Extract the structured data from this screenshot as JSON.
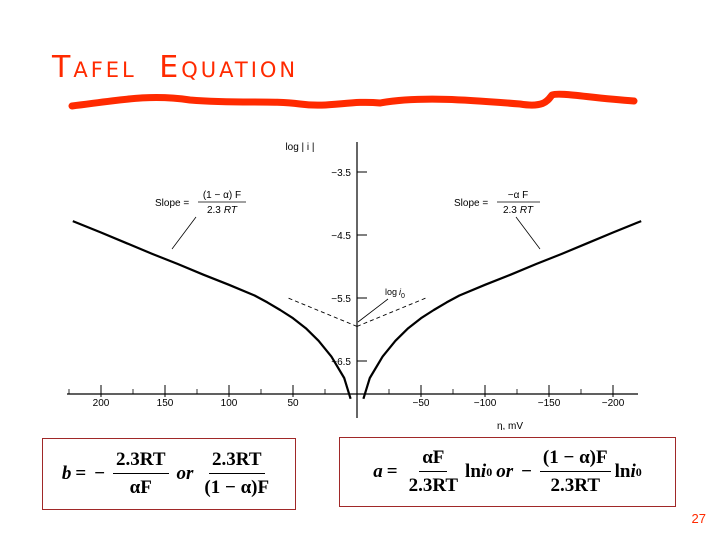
{
  "slide": {
    "title": "Tafel  Equation",
    "page_number": "27",
    "accent_color": "#ff2a00"
  },
  "chart_data": {
    "type": "line",
    "xlabel": "η, mV",
    "ylabel": "log | i |",
    "x_ticks": [
      200,
      150,
      100,
      50,
      -50,
      -100,
      -150,
      -200
    ],
    "x_tick_labels": [
      "200",
      "150",
      "100",
      "50",
      "−50",
      "−100",
      "−150",
      "−200"
    ],
    "xlim": [
      220,
      -220
    ],
    "y_ticks": [
      -3.5,
      -4.5,
      -5.5,
      -6.5
    ],
    "y_tick_labels": [
      "−3.5",
      "−4.5",
      "−5.5",
      "−6.5"
    ],
    "ylim": [
      -7.4,
      -2.9
    ],
    "series": [
      {
        "style": "solid",
        "x": [
          5,
          10,
          20,
          30,
          40,
          50,
          60,
          70,
          80,
          100,
          120,
          140,
          160,
          180,
          200,
          222
        ],
        "y": [
          -7.1,
          -6.77,
          -6.43,
          -6.18,
          -5.98,
          -5.82,
          -5.69,
          -5.57,
          -5.46,
          -5.29,
          -5.13,
          -4.96,
          -4.8,
          -4.63,
          -4.46,
          -4.28
        ]
      },
      {
        "style": "solid",
        "x": [
          -5,
          -10,
          -20,
          -30,
          -40,
          -50,
          -60,
          -70,
          -80,
          -100,
          -120,
          -140,
          -160,
          -180,
          -200,
          -222
        ],
        "y": [
          -7.1,
          -6.77,
          -6.43,
          -6.18,
          -5.98,
          -5.82,
          -5.69,
          -5.57,
          -5.46,
          -5.29,
          -5.13,
          -4.96,
          -4.8,
          -4.63,
          -4.46,
          -4.28
        ]
      },
      {
        "style": "dashed",
        "x": [
          0,
          55
        ],
        "y": [
          -5.95,
          -5.49
        ]
      },
      {
        "style": "dashed",
        "x": [
          0,
          -55
        ],
        "y": [
          -5.95,
          -5.49
        ]
      }
    ],
    "annotations": {
      "log_i0": {
        "text": "log",
        "var": "i",
        "sub": "0"
      },
      "slope_left": {
        "prefix": "Slope =",
        "numerator": "(1 − α) F",
        "denominator_num": "2.3",
        "denominator_var": "RT"
      },
      "slope_right": {
        "prefix": "Slope =",
        "numerator": "−α F",
        "denominator_num": "2.3",
        "denominator_var": "RT"
      }
    }
  },
  "equations": {
    "b": {
      "lhs": "b",
      "eq": "=",
      "minus": "−",
      "num1": "2.3RT",
      "den1": "αF",
      "or": "or",
      "num2": "2.3RT",
      "den2": "(1 − α)F"
    },
    "a": {
      "lhs": "a",
      "eq": "=",
      "num1": "αF",
      "den1": "2.3RT",
      "ln1": "ln",
      "i0": "i",
      "sub0": "0",
      "or": "or",
      "minus": "−",
      "num2": "(1 − α)F",
      "den2": "2.3RT",
      "ln2": "ln"
    }
  }
}
